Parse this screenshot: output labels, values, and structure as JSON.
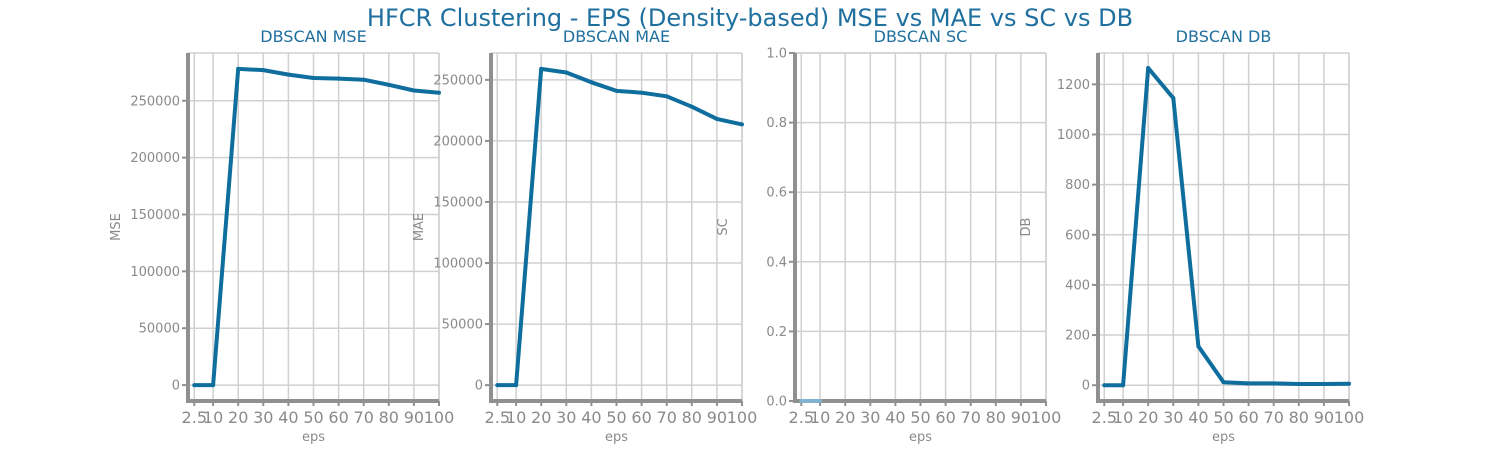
{
  "suptitle": "HFCR Clustering - EPS (Density-based) MSE vs MAE vs SC vs DB",
  "chart_data": [
    {
      "type": "line",
      "title": "DBSCAN MSE",
      "xlabel": "eps",
      "ylabel": "MSE",
      "x": [
        2.5,
        10,
        20,
        30,
        40,
        50,
        60,
        70,
        80,
        90,
        100
      ],
      "xticks": [
        "2.5",
        "10",
        "20",
        "30",
        "40",
        "50",
        "60",
        "70",
        "80",
        "90",
        "100"
      ],
      "xlim": [
        0,
        100
      ],
      "y": [
        0,
        0,
        278000,
        277000,
        273000,
        270000,
        269500,
        268500,
        264000,
        259000,
        257000
      ],
      "ylim": [
        -14000,
        292000
      ],
      "yticks": [
        0,
        50000,
        100000,
        150000,
        200000,
        250000
      ],
      "yticklabels": [
        "0",
        "50000",
        "100000",
        "150000",
        "200000",
        "250000"
      ],
      "grid": true,
      "color": "#0f6e9e"
    },
    {
      "type": "line",
      "title": "DBSCAN MAE",
      "xlabel": "eps",
      "ylabel": "MAE",
      "x": [
        2.5,
        10,
        20,
        30,
        40,
        50,
        60,
        70,
        80,
        90,
        100
      ],
      "xticks": [
        "2.5",
        "10",
        "20",
        "30",
        "40",
        "50",
        "60",
        "70",
        "80",
        "90",
        "100"
      ],
      "xlim": [
        0,
        100
      ],
      "y": [
        0,
        0,
        259000,
        256000,
        248000,
        241000,
        239500,
        236500,
        228000,
        218000,
        213500
      ],
      "ylim": [
        -13000,
        272000
      ],
      "yticks": [
        0,
        50000,
        100000,
        150000,
        200000,
        250000
      ],
      "yticklabels": [
        "0",
        "50000",
        "100000",
        "150000",
        "200000",
        "250000"
      ],
      "grid": true,
      "color": "#0f6e9e"
    },
    {
      "type": "line",
      "title": "DBSCAN SC",
      "xlabel": "eps",
      "ylabel": "SC",
      "x": [
        2.5,
        10
      ],
      "xticks": [
        "2.5",
        "10",
        "20",
        "30",
        "40",
        "50",
        "60",
        "70",
        "80",
        "90",
        "100"
      ],
      "xtickvalues": [
        2.5,
        10,
        20,
        30,
        40,
        50,
        60,
        70,
        80,
        90,
        100
      ],
      "xlim": [
        0,
        100
      ],
      "y": [
        0,
        0
      ],
      "ylim": [
        0,
        1
      ],
      "yticks": [
        0,
        0.2,
        0.4,
        0.6,
        0.8,
        1.0
      ],
      "yticklabels": [
        "0.0",
        "0.2",
        "0.4",
        "0.6",
        "0.8",
        "1.0"
      ],
      "grid": true,
      "color": "#7fb3d0"
    },
    {
      "type": "line",
      "title": "DBSCAN DB",
      "xlabel": "eps",
      "ylabel": "DB",
      "x": [
        2.5,
        10,
        20,
        30,
        40,
        50,
        60,
        70,
        80,
        90,
        100
      ],
      "xticks": [
        "2.5",
        "10",
        "20",
        "30",
        "40",
        "50",
        "60",
        "70",
        "80",
        "90",
        "100"
      ],
      "xlim": [
        0,
        100
      ],
      "y": [
        0,
        0,
        1265,
        1145,
        155,
        12,
        7,
        7,
        5,
        5,
        6
      ],
      "ylim": [
        -63,
        1325
      ],
      "yticks": [
        0,
        200,
        400,
        600,
        800,
        1000,
        1200
      ],
      "yticklabels": [
        "0",
        "200",
        "400",
        "600",
        "800",
        "1000",
        "1200"
      ],
      "grid": true,
      "color": "#0f6e9e"
    }
  ]
}
